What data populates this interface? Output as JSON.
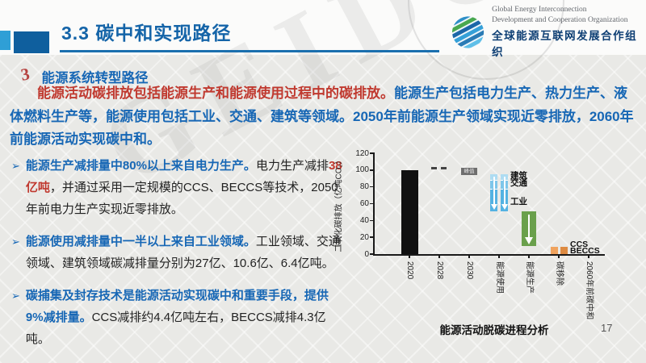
{
  "header": {
    "title": "3.3 碳中和实现路径",
    "logo": {
      "line1": "Global Energy Interconnection",
      "line2": "Development and Cooperation Organization",
      "line3": "全球能源互联网发展合作组织"
    }
  },
  "watermark": "GEIDCO",
  "section": {
    "number": "3",
    "heading": "能源系统转型路径",
    "paragraph": [
      {
        "style": "red",
        "text": "能源活动碳排放包括能源生产和能源使用过程中的碳排放。"
      },
      {
        "style": "blue",
        "text": "能源生产包括电力生产、热力生产、液体燃料生产等，能源使用包括工业、交通、建筑等领域。2050年前能源生产领域实现近零排放，2060年前能源活动实现碳中和。"
      }
    ]
  },
  "bullets": {
    "icon": "➢",
    "items": [
      {
        "segments": [
          {
            "style": "blue",
            "text": "能源生产减排量中80%以上来自电力生产。"
          },
          {
            "style": "black",
            "text": "电力生产减排"
          },
          {
            "style": "red",
            "text": "38亿吨"
          },
          {
            "style": "black",
            "text": "，并通过采用一定规模的CCS、BECCS等技术，2050年前电力生产实现近零排放。"
          }
        ]
      },
      {
        "segments": [
          {
            "style": "blue",
            "text": "能源使用减排量中一半以上来自工业领域。"
          },
          {
            "style": "black",
            "text": "工业领域、交通领域、建筑领域碳减排量分别为27亿、10.6亿、6.4亿吨。"
          }
        ]
      },
      {
        "segments": [
          {
            "style": "blue",
            "text": "碳捕集及封存技术是能源活动实现碳中和重要手段，提供9%减排量。"
          },
          {
            "style": "black",
            "text": "CCS减排约4.4亿吨左右，BECCS减排4.3亿吨。"
          }
        ]
      }
    ]
  },
  "chart_data": {
    "type": "bar",
    "subtype": "waterfall",
    "title": "能源活动脱碳进程分析",
    "ylabel": "二氧化碳排放（亿吨CO₂）",
    "ylim": [
      0,
      120
    ],
    "yticks": [
      0,
      20,
      40,
      60,
      80,
      100,
      120
    ],
    "categories": [
      "2020",
      "2028",
      "2030",
      "能源使用",
      "能源生产",
      "碳移除",
      "2060年前碳中和"
    ],
    "bars": [
      {
        "category": "2020",
        "style": "solid",
        "from": 0,
        "to": 100,
        "color": "#111111"
      },
      {
        "category": "2028",
        "style": "dashes",
        "value": 102,
        "color": "#444444"
      },
      {
        "category": "2030",
        "style": "badge",
        "value": 99,
        "label": "峰值",
        "color": "#6e6e6e"
      },
      {
        "category": "能源使用",
        "style": "double-arrow",
        "from": 51,
        "to": 95,
        "colors": [
          "#aedcf2",
          "#7ec6ea",
          "#54b2e2"
        ],
        "segments": [
          {
            "label": "建筑",
            "value": 6.4
          },
          {
            "label": "交通",
            "value": 10.6
          },
          {
            "label": "工业",
            "value": 27
          }
        ]
      },
      {
        "category": "能源生产",
        "style": "arrow",
        "from": 10,
        "to": 51,
        "color": "#6aa04c"
      },
      {
        "category": "碳移除",
        "style": "double",
        "from": 0,
        "to": 8.7,
        "colors": [
          "#f0a35e",
          "#dd8a41"
        ]
      },
      {
        "category": "2060年前碳中和",
        "style": "none",
        "value": 0
      }
    ],
    "annotations": [
      {
        "text": "建筑",
        "col": 3,
        "value": 93
      },
      {
        "text": "交通",
        "col": 3,
        "value": 84
      },
      {
        "text": "工业",
        "col": 3,
        "value": 62
      },
      {
        "text": "CCS",
        "col": 5,
        "value": 11.5
      },
      {
        "text": "BECCS",
        "col": 5,
        "value": 3.8
      }
    ]
  },
  "footer": {
    "page_number": "17"
  },
  "colors": {
    "title_blue": "#1464a8",
    "text_blue": "#1767b5",
    "text_red": "#c0392f",
    "accent_light_blue": "#2f9fd6",
    "accent_dark_blue": "#0f5f9e",
    "bar_black": "#111111",
    "bar_blue": "#54b2e2",
    "bar_green": "#6aa04c",
    "bar_orange": "#e89a4f"
  }
}
